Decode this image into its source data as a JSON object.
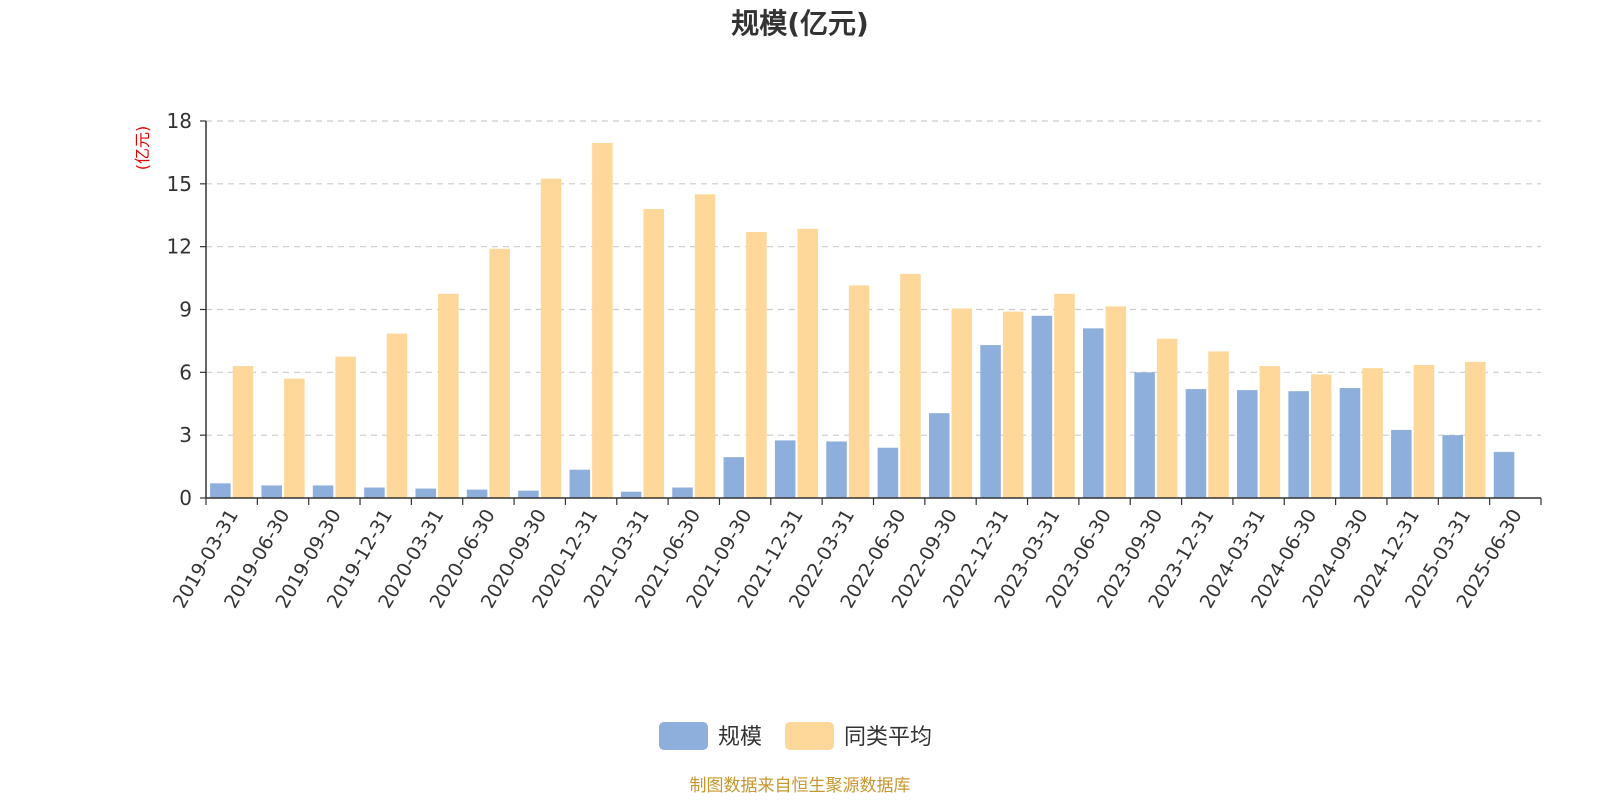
{
  "chart_data": {
    "type": "bar",
    "title": "规模(亿元)",
    "unit_label": "(亿元)",
    "categories": [
      "2019-03-31",
      "2019-06-30",
      "2019-09-30",
      "2019-12-31",
      "2020-03-31",
      "2020-06-30",
      "2020-09-30",
      "2020-12-31",
      "2021-03-31",
      "2021-06-30",
      "2021-09-30",
      "2021-12-31",
      "2022-03-31",
      "2022-06-30",
      "2022-09-30",
      "2022-12-31",
      "2023-03-31",
      "2023-06-30",
      "2023-09-30",
      "2023-12-31",
      "2024-03-31",
      "2024-06-30",
      "2024-09-30",
      "2024-12-31",
      "2025-03-31",
      "2025-06-30"
    ],
    "series": [
      {
        "name": "规模",
        "color": "#8eaedc",
        "values": [
          0.7,
          0.6,
          0.6,
          0.5,
          0.45,
          0.4,
          0.35,
          1.35,
          0.3,
          0.5,
          1.95,
          2.75,
          2.7,
          2.4,
          4.05,
          7.3,
          8.7,
          8.1,
          6.0,
          5.2,
          5.15,
          5.1,
          5.25,
          3.25,
          3.0,
          2.2
        ]
      },
      {
        "name": "同类平均",
        "color": "#fdd89a",
        "values": [
          6.3,
          5.7,
          6.75,
          7.85,
          9.75,
          11.9,
          15.25,
          16.95,
          13.8,
          14.5,
          12.7,
          12.85,
          10.15,
          10.7,
          9.05,
          8.9,
          9.75,
          9.15,
          7.6,
          7.0,
          6.3,
          5.9,
          6.2,
          6.35,
          6.5,
          null
        ]
      }
    ],
    "ylim": [
      0,
      18
    ],
    "yticks": [
      "0",
      "3",
      "6",
      "9",
      "12",
      "15",
      "18"
    ],
    "grid": true,
    "legend_position": "bottom-center"
  },
  "source_note": "制图数据来自恒生聚源数据库"
}
